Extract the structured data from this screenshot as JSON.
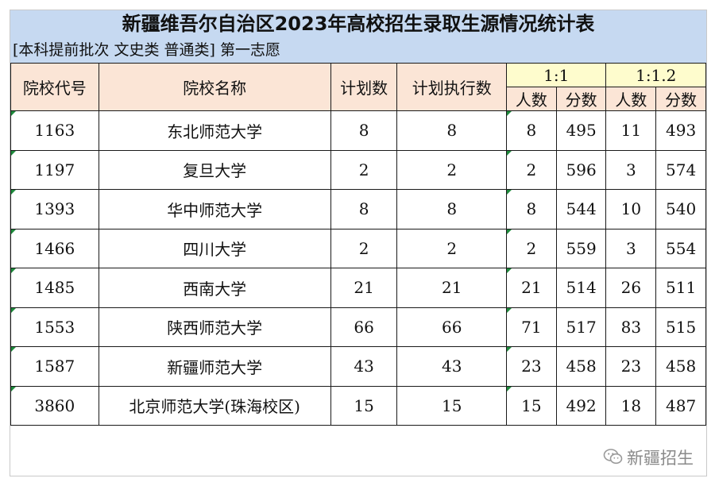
{
  "title": "新疆维吾尔自治区2023年高校招生录取生源情况统计表",
  "subtitle": "[本科提前批次  文史类 普通类] 第一志愿",
  "columns": {
    "code": "院校代号",
    "name": "院校名称",
    "plan": "计划数",
    "plan_exec": "计划执行数",
    "ratio_1": "1:1",
    "ratio_1_2": "1:1.2",
    "count": "人数",
    "score": "分数"
  },
  "rows": [
    {
      "code": "1163",
      "name": "东北师范大学",
      "plan": "8",
      "plan_exec": "8",
      "r1_count": "8",
      "r1_score": "495",
      "r12_count": "11",
      "r12_score": "493"
    },
    {
      "code": "1197",
      "name": "复旦大学",
      "plan": "2",
      "plan_exec": "2",
      "r1_count": "2",
      "r1_score": "596",
      "r12_count": "3",
      "r12_score": "574"
    },
    {
      "code": "1393",
      "name": "华中师范大学",
      "plan": "8",
      "plan_exec": "8",
      "r1_count": "8",
      "r1_score": "544",
      "r12_count": "10",
      "r12_score": "540"
    },
    {
      "code": "1466",
      "name": "四川大学",
      "plan": "2",
      "plan_exec": "2",
      "r1_count": "2",
      "r1_score": "559",
      "r12_count": "3",
      "r12_score": "554"
    },
    {
      "code": "1485",
      "name": "西南大学",
      "plan": "21",
      "plan_exec": "21",
      "r1_count": "21",
      "r1_score": "514",
      "r12_count": "26",
      "r12_score": "511"
    },
    {
      "code": "1553",
      "name": "陕西师范大学",
      "plan": "66",
      "plan_exec": "66",
      "r1_count": "71",
      "r1_score": "517",
      "r12_count": "83",
      "r12_score": "515"
    },
    {
      "code": "1587",
      "name": "新疆师范大学",
      "plan": "43",
      "plan_exec": "43",
      "r1_count": "23",
      "r1_score": "458",
      "r12_count": "23",
      "r12_score": "458"
    },
    {
      "code": "3860",
      "name": "北京师范大学(珠海校区)",
      "plan": "15",
      "plan_exec": "15",
      "r1_count": "15",
      "r1_score": "492",
      "r12_count": "18",
      "r12_score": "487"
    }
  ],
  "watermark": {
    "text": "新疆招生",
    "icon": "wechat-icon"
  },
  "colors": {
    "header_band": "#c6d9f1",
    "main_header": "#fbe5d6",
    "group_header": "#fefccd",
    "cell_marker": "#1e8a3c"
  }
}
